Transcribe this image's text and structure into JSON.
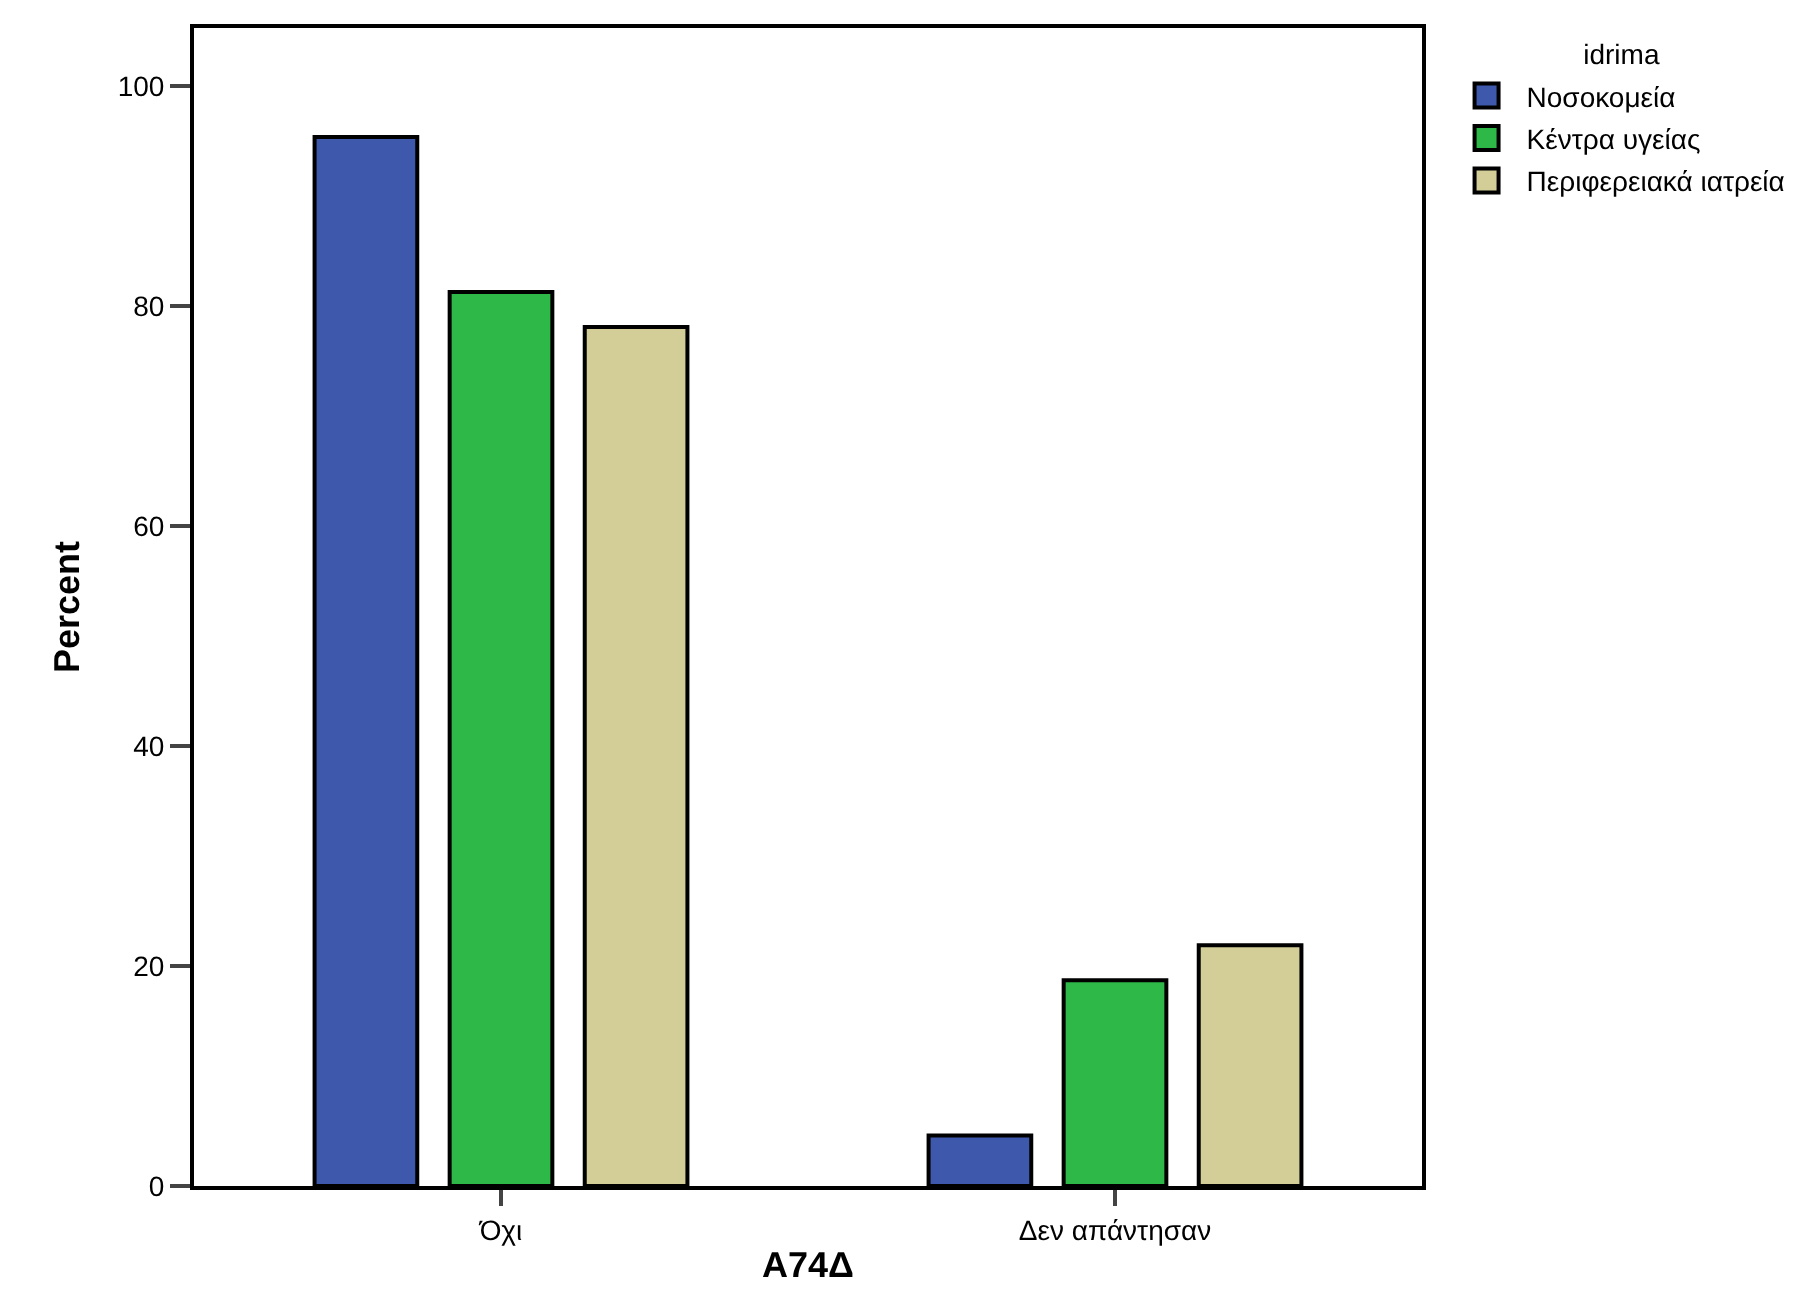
{
  "chart_data": {
    "type": "bar",
    "xlabel": "Α74Δ",
    "ylabel": "Percent",
    "legend_title": "idrima",
    "categories": [
      "Όχι",
      "Δεν απάντησαν"
    ],
    "series": [
      {
        "name": "Νοσοκομεία",
        "color": "#3e58ac",
        "values": [
          95.4,
          4.6
        ]
      },
      {
        "name": "Κέντρα υγείας",
        "color": "#2eb848",
        "values": [
          81.3,
          18.7
        ]
      },
      {
        "name": "Περιφερειακά ιατρεία",
        "color": "#d3ce97",
        "values": [
          78.1,
          21.9
        ]
      }
    ],
    "ylim": [
      0,
      105.3
    ],
    "yticks": [
      0,
      20,
      40,
      60,
      80,
      100
    ],
    "grid": false,
    "legend": "top right"
  }
}
